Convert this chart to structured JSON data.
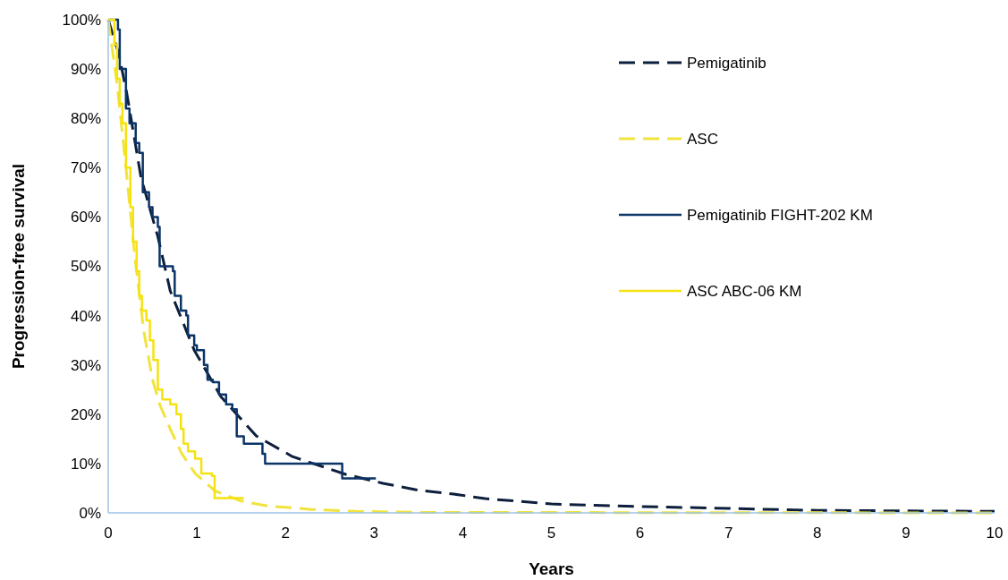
{
  "chart_data": {
    "type": "line",
    "xlabel": "Years",
    "ylabel": "Progression-free survival",
    "xlim": [
      0,
      10
    ],
    "xticks": [
      0,
      1,
      2,
      3,
      4,
      5,
      6,
      7,
      8,
      9,
      10
    ],
    "ylim": [
      0,
      100
    ],
    "yticks": [
      {
        "value": 0,
        "label": "0%"
      },
      {
        "value": 10,
        "label": "10%"
      },
      {
        "value": 20,
        "label": "20%"
      },
      {
        "value": 30,
        "label": "30%"
      },
      {
        "value": 40,
        "label": "40%"
      },
      {
        "value": 50,
        "label": "50%"
      },
      {
        "value": 60,
        "label": "60%"
      },
      {
        "value": 70,
        "label": "70%"
      },
      {
        "value": 80,
        "label": "80%"
      },
      {
        "value": 90,
        "label": "90%"
      },
      {
        "value": 100,
        "label": "100%"
      }
    ],
    "grid": false,
    "legend": "top right",
    "series": [
      {
        "name": "Pemigatinib",
        "line_style": "dashed",
        "color": "#0d1f3c",
        "x": [
          0,
          0.12,
          0.21,
          0.37,
          0.56,
          0.7,
          0.97,
          1.27,
          1.67,
          2.08,
          2.68,
          3.1,
          3.5,
          3.9,
          4.25,
          5,
          6,
          7,
          8,
          9,
          10
        ],
        "values": [
          100,
          93,
          85,
          68,
          56,
          45,
          33,
          23.6,
          15.6,
          11.4,
          7.8,
          6,
          4.6,
          3.8,
          2.9,
          1.8,
          1.3,
          0.9,
          0.5,
          0.4,
          0.3
        ]
      },
      {
        "name": "ASC",
        "line_style": "dashed",
        "color": "#f2e33c",
        "x": [
          0,
          0.1,
          0.2,
          0.3,
          0.4,
          0.5,
          0.58,
          0.7,
          0.83,
          0.98,
          1.2,
          1.5,
          1.8,
          2.3,
          2.8,
          3.5,
          10
        ],
        "values": [
          100,
          87,
          70,
          52,
          37,
          27,
          22,
          17,
          12,
          8,
          4.5,
          2.4,
          1.4,
          0.7,
          0.3,
          0.1,
          0
        ]
      },
      {
        "name": "Pemigatinib FIGHT-202 KM",
        "type": "step",
        "line_style": "solid",
        "color": "#0b3467",
        "x": [
          0,
          0.11,
          0.13,
          0.2,
          0.24,
          0.31,
          0.35,
          0.39,
          0.46,
          0.5,
          0.56,
          0.58,
          0.73,
          0.75,
          0.82,
          0.88,
          0.9,
          0.97,
          1.0,
          1.08,
          1.12,
          1.18,
          1.25,
          1.33,
          1.4,
          1.45,
          1.53,
          1.74,
          1.77,
          2.64,
          3.02
        ],
        "values": [
          100,
          98,
          90,
          82,
          79,
          75,
          73,
          65,
          62,
          60,
          58,
          50,
          49,
          44,
          41,
          40,
          36,
          34,
          33,
          30,
          27,
          26.5,
          24,
          22,
          21,
          15.5,
          14,
          12,
          10,
          7,
          7
        ]
      },
      {
        "name": "ASC ABC-06 KM",
        "type": "step",
        "line_style": "solid",
        "color": "#f5e20f",
        "x": [
          0,
          0.07,
          0.1,
          0.13,
          0.16,
          0.2,
          0.25,
          0.28,
          0.32,
          0.35,
          0.38,
          0.43,
          0.47,
          0.51,
          0.56,
          0.61,
          0.7,
          0.77,
          0.82,
          0.85,
          0.9,
          0.98,
          1.05,
          1.17,
          1.2,
          1.53
        ],
        "values": [
          100,
          95,
          88,
          83,
          79,
          70,
          62,
          55,
          49,
          44,
          41,
          39,
          35,
          31,
          25,
          23,
          22,
          20,
          17,
          14,
          12.5,
          11,
          8,
          7.5,
          3,
          3
        ]
      }
    ]
  }
}
